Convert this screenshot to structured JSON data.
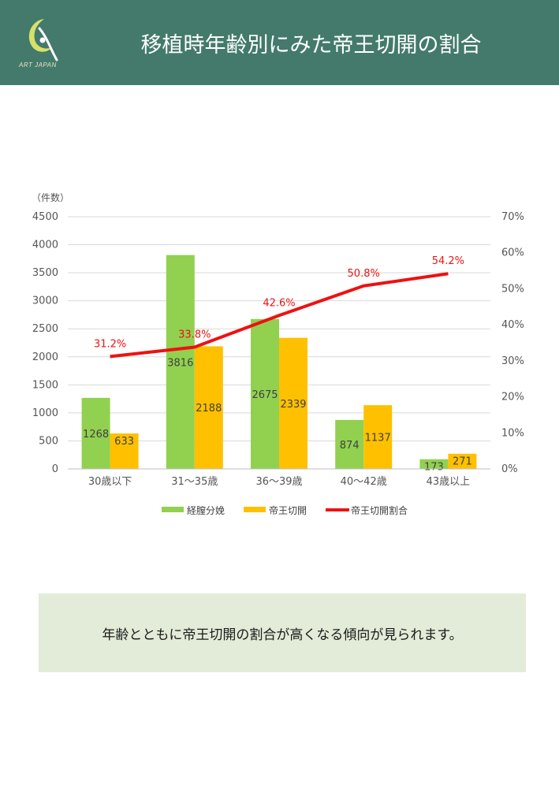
{
  "header": {
    "title": "移植時年齢別にみた帝王切開の割合",
    "logo_text": "ART JAPAN",
    "bg_color": "#437a6b"
  },
  "chart_data": {
    "type": "bar",
    "categories": [
      "30歳以下",
      "31～35歳",
      "36～39歳",
      "40～42歳",
      "43歳以上"
    ],
    "series": [
      {
        "name": "経膣分娩",
        "kind": "bar",
        "color": "#92d050",
        "values": [
          1268,
          3816,
          2675,
          874,
          173
        ],
        "labels": [
          "1268",
          "3816",
          "2675",
          "874",
          "173"
        ]
      },
      {
        "name": "帝王切開",
        "kind": "bar",
        "color": "#ffc000",
        "values": [
          633,
          2188,
          2339,
          1137,
          271
        ],
        "labels": [
          "633",
          "2188",
          "2339",
          "1137",
          "271"
        ]
      },
      {
        "name": "帝王切開割合",
        "kind": "line",
        "axis": "right",
        "color": "#ee1111",
        "values": [
          31.2,
          33.8,
          42.6,
          50.8,
          54.2
        ],
        "labels": [
          "31.2%",
          "33.8%",
          "42.6%",
          "50.8%",
          "54.2%"
        ]
      }
    ],
    "y_left": {
      "unit_label": "（件数）",
      "min": 0,
      "max": 4500,
      "ticks": [
        "0",
        "500",
        "1000",
        "1500",
        "2000",
        "2500",
        "3000",
        "3500",
        "4000",
        "4500"
      ]
    },
    "y_right": {
      "min": 0,
      "max": 70,
      "ticks": [
        "0%",
        "10%",
        "20%",
        "30%",
        "40%",
        "50%",
        "60%",
        "70%"
      ]
    },
    "grid": true,
    "legend_position": "bottom"
  },
  "note": {
    "text": "年齢とともに帝王切開の割合が高くなる傾向が見られます。",
    "bg_color": "#e2ecd8"
  }
}
